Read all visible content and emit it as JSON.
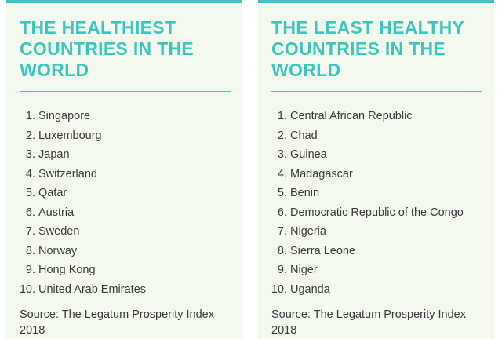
{
  "panels": [
    {
      "title": "THE HEALTHIEST COUNTRIES IN THE WORLD",
      "items": [
        {
          "rank": "1.",
          "name": "Singapore"
        },
        {
          "rank": "2.",
          "name": "Luxembourg"
        },
        {
          "rank": "3.",
          "name": "Japan"
        },
        {
          "rank": "4.",
          "name": "Switzerland"
        },
        {
          "rank": "5.",
          "name": "Qatar"
        },
        {
          "rank": "6.",
          "name": "Austria"
        },
        {
          "rank": "7.",
          "name": "Sweden"
        },
        {
          "rank": "8.",
          "name": "Norway"
        },
        {
          "rank": "9.",
          "name": "Hong Kong"
        },
        {
          "rank": "10.",
          "name": "United Arab Emirates"
        }
      ],
      "source": "Source: The Legatum Prosperity Index 2018"
    },
    {
      "title": "THE LEAST HEALTHY COUNTRIES IN THE WORLD",
      "items": [
        {
          "rank": "1.",
          "name": "Central African Republic"
        },
        {
          "rank": "2.",
          "name": "Chad"
        },
        {
          "rank": "3.",
          "name": "Guinea"
        },
        {
          "rank": "4.",
          "name": "Madagascar"
        },
        {
          "rank": "5.",
          "name": "Benin"
        },
        {
          "rank": "6.",
          "name": "Democratic Republic of the Congo"
        },
        {
          "rank": "7.",
          "name": "Nigeria"
        },
        {
          "rank": "8.",
          "name": "Sierra Leone"
        },
        {
          "rank": "9.",
          "name": "Niger"
        },
        {
          "rank": "10.",
          "name": "Uganda"
        }
      ],
      "source": "Source: The Legatum Prosperity Index 2018"
    }
  ],
  "colors": {
    "accent": "#3bc6c0",
    "panel_background": "#f4f9ed",
    "text": "#3a3a3a"
  }
}
